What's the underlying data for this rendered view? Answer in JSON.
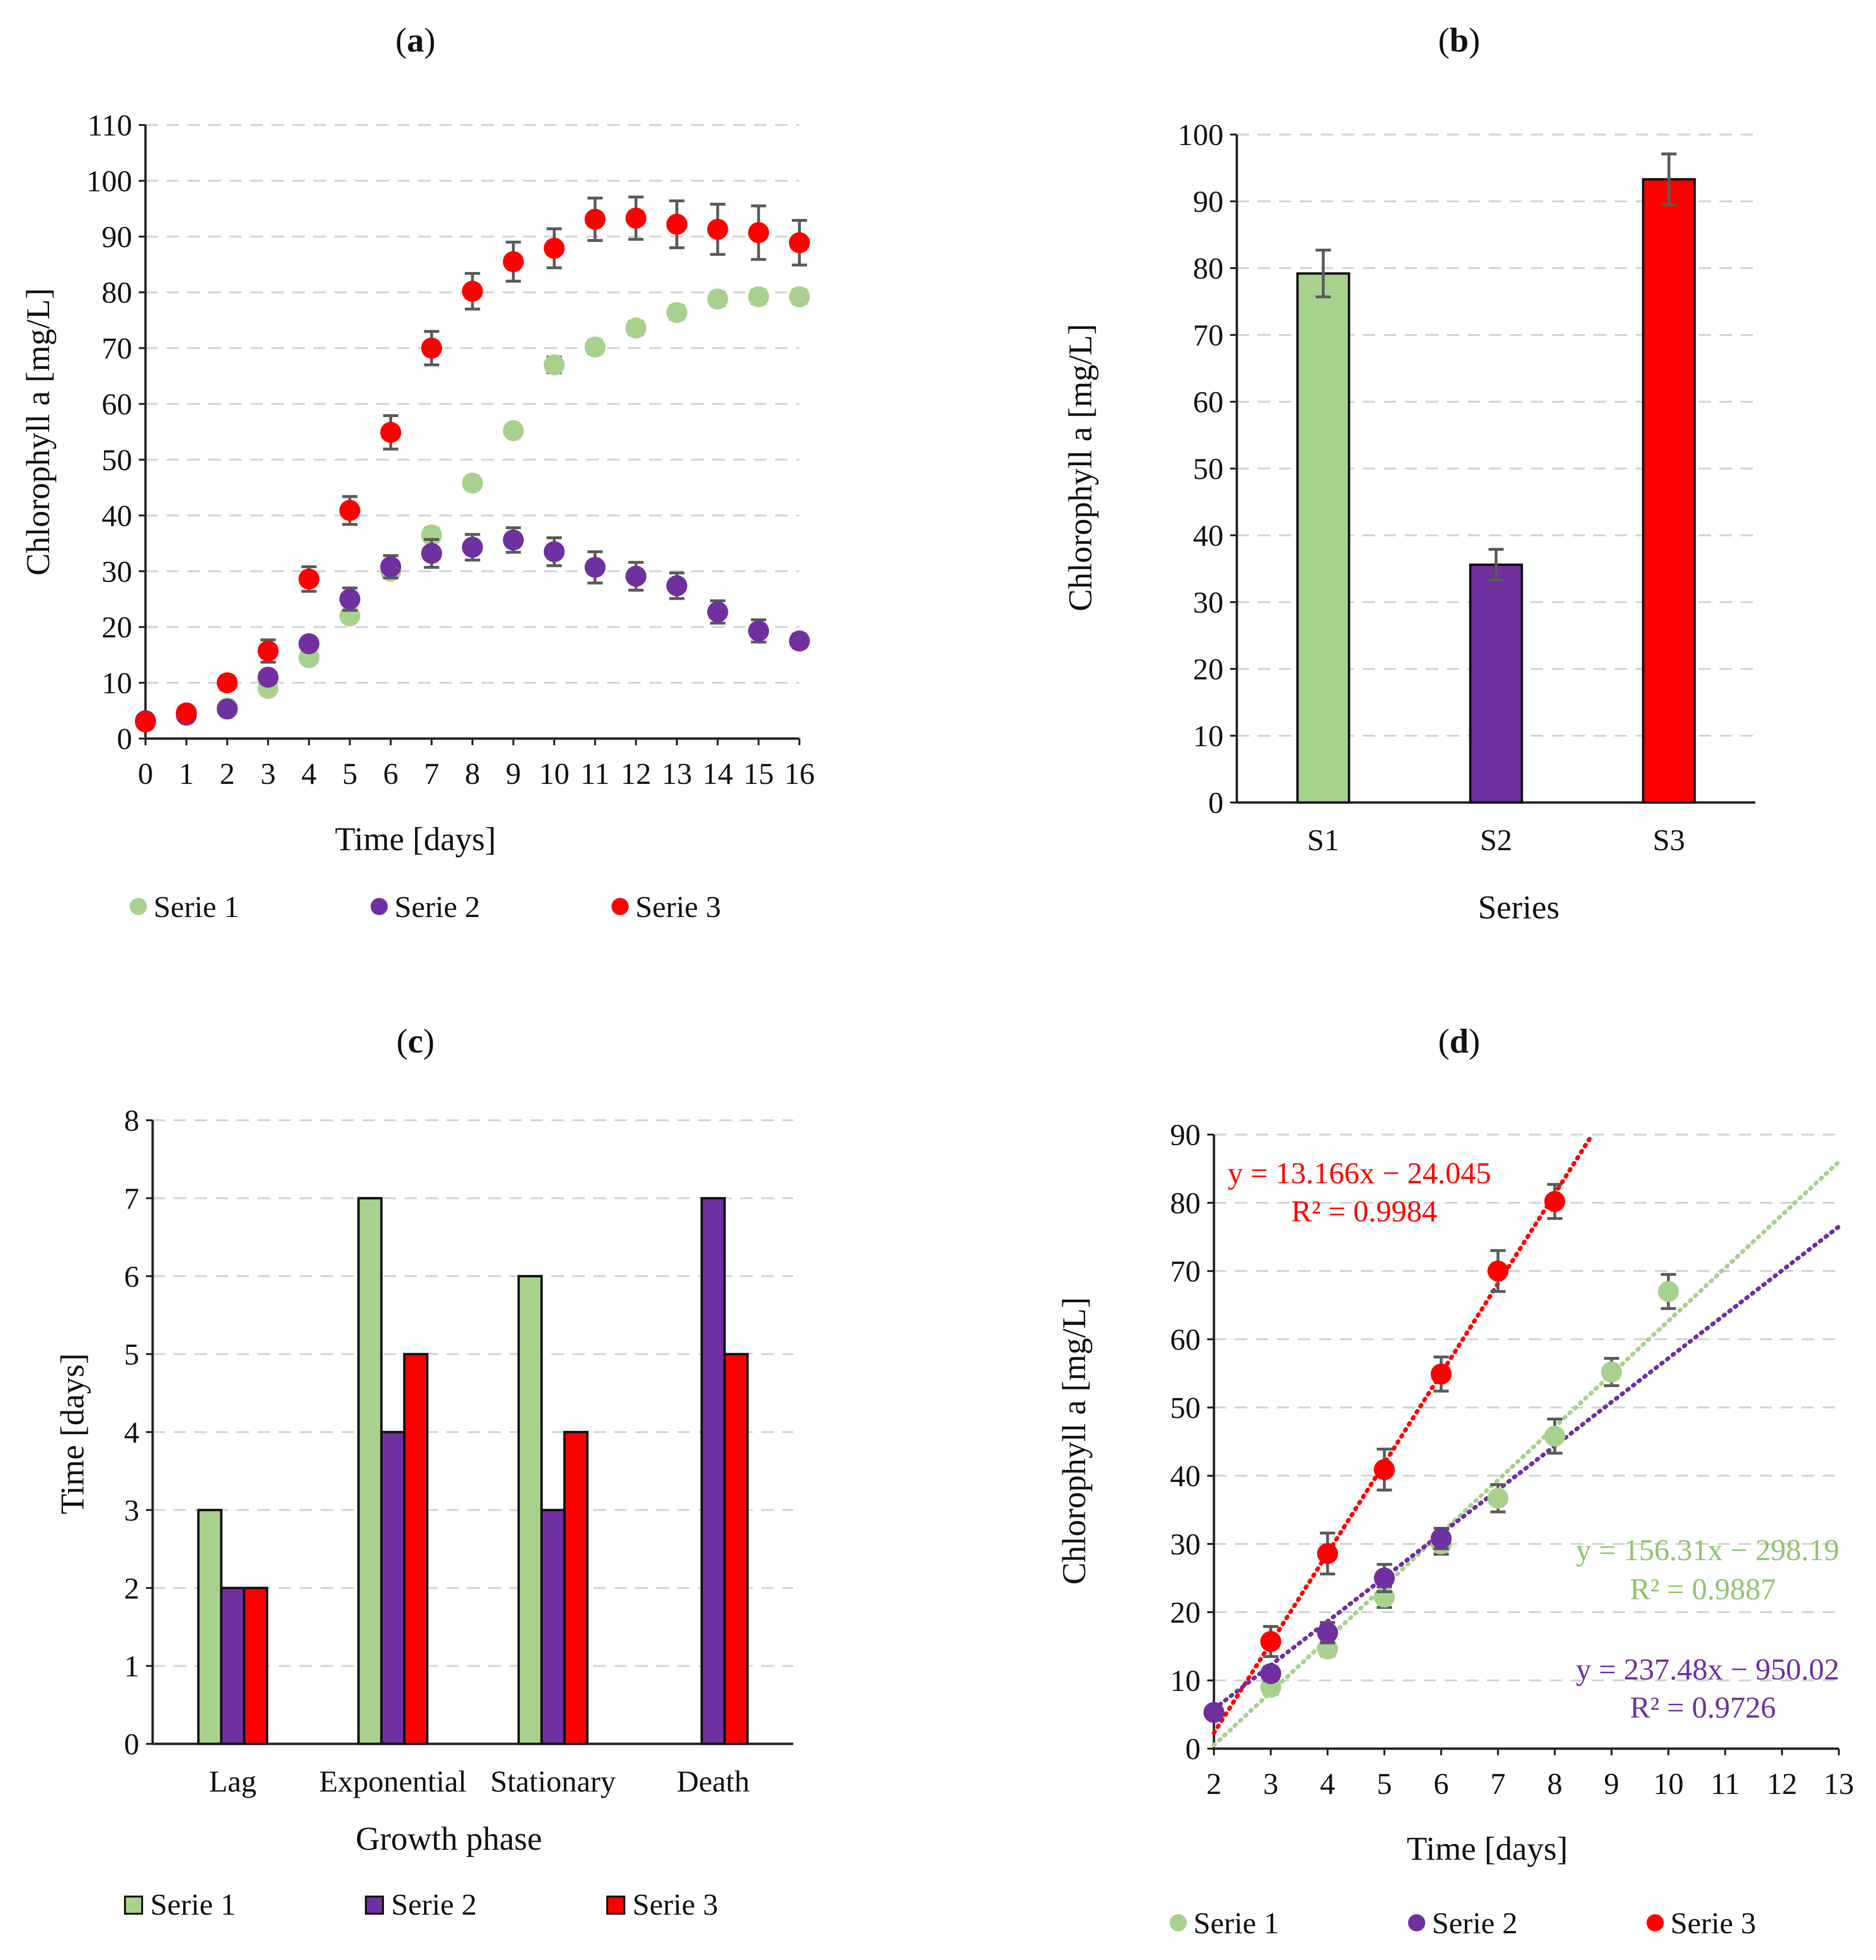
{
  "colors": {
    "serie1": "#a9d18e",
    "serie2": "#7030a0",
    "serie3": "#ff0000"
  },
  "legend": [
    "Serie 1",
    "Serie 2",
    "Serie 3"
  ],
  "chart_data": [
    {
      "id": "a",
      "title_letter": "a",
      "type": "scatter",
      "xlabel": "Time [days]",
      "ylabel": "Chlorophyll a [mg/L]",
      "xlim": [
        0,
        16
      ],
      "ylim": [
        0,
        110
      ],
      "xticks": [
        "0",
        "1",
        "2",
        "3",
        "4",
        "5",
        "6",
        "7",
        "8",
        "9",
        "10",
        "11",
        "12",
        "13",
        "14",
        "15",
        "16"
      ],
      "yticks": [
        "0",
        "10",
        "20",
        "30",
        "40",
        "50",
        "60",
        "70",
        "80",
        "90",
        "100",
        "110"
      ],
      "series": [
        {
          "name": "Serie 1",
          "x": [
            0,
            1,
            2,
            3,
            4,
            5,
            6,
            7,
            8,
            9,
            10,
            11,
            12,
            13,
            14,
            15,
            16
          ],
          "values": [
            3,
            4.5,
            5.5,
            9,
            14.5,
            22,
            30,
            36.5,
            45.8,
            55.2,
            67,
            70.2,
            73.6,
            76.4,
            78.8,
            79.2,
            79.2
          ],
          "errors": [
            0.5,
            0.5,
            0.5,
            0.8,
            0.9,
            1,
            1,
            1.2,
            1.1,
            1.1,
            1.4,
            1.2,
            1.2,
            1.2,
            1.2,
            1.2,
            1.2
          ]
        },
        {
          "name": "Serie 2",
          "x": [
            0,
            1,
            2,
            3,
            4,
            5,
            6,
            7,
            8,
            9,
            10,
            11,
            12,
            13,
            14,
            15,
            16
          ],
          "values": [
            3.2,
            4.2,
            5.3,
            11,
            17,
            25,
            30.8,
            33.2,
            34.3,
            35.6,
            33.5,
            30.7,
            29.1,
            27.4,
            22.7,
            19.3,
            17.5
          ],
          "errors": [
            0.5,
            0.5,
            0.6,
            1,
            1.1,
            2,
            2,
            2.5,
            2.3,
            2.2,
            2.5,
            2.8,
            2.5,
            2.3,
            2,
            2,
            1.2
          ]
        },
        {
          "name": "Serie 3",
          "x": [
            0,
            1,
            2,
            3,
            4,
            5,
            6,
            7,
            8,
            9,
            10,
            11,
            12,
            13,
            14,
            15,
            16
          ],
          "values": [
            3,
            4.6,
            10,
            15.7,
            28.6,
            40.9,
            54.9,
            70,
            80.2,
            85.5,
            87.9,
            93.1,
            93.3,
            92.2,
            91.3,
            90.7,
            88.9
          ],
          "errors": [
            0.6,
            0.6,
            1.2,
            2,
            2.2,
            2.5,
            3,
            3,
            3.2,
            3.5,
            3.5,
            3.8,
            3.8,
            4.2,
            4.5,
            4.8,
            4
          ]
        }
      ]
    },
    {
      "id": "b",
      "title_letter": "b",
      "type": "bar",
      "xlabel": "Series",
      "ylabel": "Chlorophyll a [mg/L]",
      "ylim": [
        0,
        100
      ],
      "categories": [
        "S1",
        "S2",
        "S3"
      ],
      "yticks": [
        "0",
        "10",
        "20",
        "30",
        "40",
        "50",
        "60",
        "70",
        "80",
        "90",
        "100"
      ],
      "values": [
        79.2,
        35.6,
        93.3
      ],
      "errors": [
        3.5,
        2.3,
        3.8
      ]
    },
    {
      "id": "c",
      "title_letter": "c",
      "type": "bar",
      "xlabel": "Growth phase",
      "ylabel": "Time [days]",
      "ylim": [
        0,
        8
      ],
      "categories": [
        "Lag",
        "Exponential",
        "Stationary",
        "Death"
      ],
      "yticks": [
        "0",
        "1",
        "2",
        "3",
        "4",
        "5",
        "6",
        "7",
        "8"
      ],
      "series": [
        {
          "name": "Serie 1",
          "values": [
            3,
            7,
            6,
            0
          ]
        },
        {
          "name": "Serie 2",
          "values": [
            2,
            4,
            3,
            7
          ]
        },
        {
          "name": "Serie 3",
          "values": [
            2,
            5,
            4,
            5
          ]
        }
      ]
    },
    {
      "id": "d",
      "title_letter": "d",
      "type": "scatter",
      "xlabel": "Time [days]",
      "ylabel": "Chlorophyll a [mg/L]",
      "xlim": [
        2,
        13
      ],
      "ylim": [
        0,
        90
      ],
      "xticks": [
        "2",
        "3",
        "4",
        "5",
        "6",
        "7",
        "8",
        "9",
        "10",
        "11",
        "12",
        "13"
      ],
      "yticks": [
        "0",
        "10",
        "20",
        "30",
        "40",
        "50",
        "60",
        "70",
        "80",
        "90"
      ],
      "series": [
        {
          "name": "Serie 1",
          "x": [
            3,
            4,
            5,
            6,
            7,
            8,
            9,
            10
          ],
          "values": [
            9,
            14.6,
            22.2,
            30,
            36.7,
            45.8,
            55.2,
            67
          ],
          "errors": [
            1,
            1,
            1.5,
            1.5,
            2,
            2.5,
            2,
            2.5
          ]
        },
        {
          "name": "Serie 2",
          "x": [
            2,
            3,
            4,
            5,
            6
          ],
          "values": [
            5.3,
            11,
            17,
            25,
            30.8
          ],
          "errors": [
            0.6,
            1,
            1.5,
            2,
            1.5
          ]
        },
        {
          "name": "Serie 3",
          "x": [
            3,
            4,
            5,
            6,
            7,
            8
          ],
          "values": [
            15.7,
            28.6,
            40.9,
            54.9,
            70,
            80.2
          ],
          "errors": [
            2.2,
            3,
            3,
            2.5,
            3,
            2.5
          ]
        }
      ],
      "trendlines": [
        {
          "series": "Serie 3",
          "x": [
            2,
            8.66
          ],
          "y": [
            2.3,
            90
          ]
        },
        {
          "series": "Serie 1",
          "x": [
            2,
            13
          ],
          "y": [
            0.5,
            86
          ]
        },
        {
          "series": "Serie 2",
          "x": [
            2,
            13
          ],
          "y": [
            5.8,
            76.5
          ]
        }
      ],
      "equations": [
        {
          "series": "Serie 3",
          "equation": "y = 13.166x − 24.045",
          "r2": "R² = 0.9984"
        },
        {
          "series": "Serie 1",
          "equation": "y = 156.31x − 298.19",
          "r2": "R² = 0.9887"
        },
        {
          "series": "Serie 2",
          "equation": "y = 237.48x − 950.02",
          "r2": "R² = 0.9726"
        }
      ]
    }
  ]
}
